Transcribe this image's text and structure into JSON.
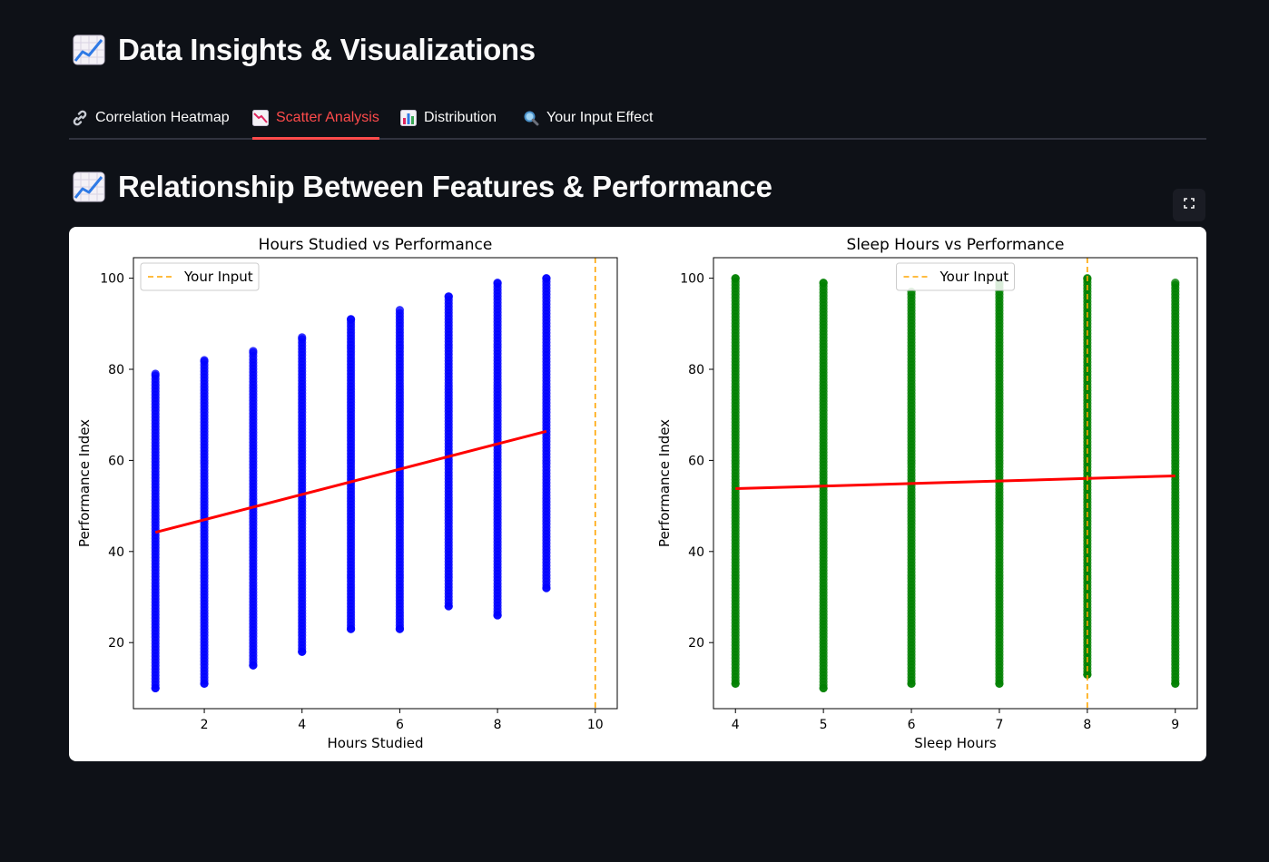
{
  "header": {
    "title": "Data Insights & Visualizations",
    "icon": "chart-increasing-icon"
  },
  "tabs": [
    {
      "label": "Correlation Heatmap",
      "icon": "link-icon",
      "active": false
    },
    {
      "label": "Scatter Analysis",
      "icon": "chart-decreasing-icon",
      "active": true
    },
    {
      "label": "Distribution",
      "icon": "bar-chart-icon",
      "active": false
    },
    {
      "label": "Your Input Effect",
      "icon": "magnifier-icon",
      "active": false
    }
  ],
  "section": {
    "title": "Relationship Between Features & Performance",
    "icon": "chart-increasing-icon"
  },
  "fullscreen": {
    "icon": "expand-icon"
  },
  "colors": {
    "background": "#0e1117",
    "accent": "#ff4b4b",
    "scatter1": "#0000ff",
    "scatter2": "#008000",
    "fit_line": "#ff0000",
    "input_line": "#ffa500"
  },
  "chart_data": [
    {
      "type": "scatter",
      "title": "Hours Studied vs Performance",
      "xlabel": "Hours Studied",
      "ylabel": "Performance Index",
      "xlim": [
        0.55,
        10.45
      ],
      "ylim": [
        5.5,
        104.5
      ],
      "xticks": [
        2,
        4,
        6,
        8,
        10
      ],
      "yticks": [
        20,
        40,
        60,
        80,
        100
      ],
      "legend": {
        "label": "Your Input",
        "placement": "upper left"
      },
      "input_value": 10,
      "point_color": "#0000ff",
      "columns": [
        {
          "x": 1,
          "ymin": 10,
          "ymax": 79
        },
        {
          "x": 2,
          "ymin": 11,
          "ymax": 82
        },
        {
          "x": 3,
          "ymin": 15,
          "ymax": 84
        },
        {
          "x": 4,
          "ymin": 18,
          "ymax": 87
        },
        {
          "x": 5,
          "ymin": 23,
          "ymax": 91
        },
        {
          "x": 6,
          "ymin": 23,
          "ymax": 93
        },
        {
          "x": 7,
          "ymin": 28,
          "ymax": 96
        },
        {
          "x": 8,
          "ymin": 26,
          "ymax": 99
        },
        {
          "x": 9,
          "ymin": 32,
          "ymax": 100
        }
      ],
      "regression": {
        "x": [
          1,
          9
        ],
        "y": [
          44.2,
          66.4
        ]
      }
    },
    {
      "type": "scatter",
      "title": "Sleep Hours vs Performance",
      "xlabel": "Sleep Hours",
      "ylabel": "Performance Index",
      "xlim": [
        3.75,
        9.25
      ],
      "ylim": [
        5.5,
        104.5
      ],
      "xticks": [
        4,
        5,
        6,
        7,
        8,
        9
      ],
      "yticks": [
        20,
        40,
        60,
        80,
        100
      ],
      "legend": {
        "label": "Your Input",
        "placement": "upper center"
      },
      "input_value": 8,
      "point_color": "#008000",
      "columns": [
        {
          "x": 4,
          "ymin": 11,
          "ymax": 100
        },
        {
          "x": 5,
          "ymin": 10,
          "ymax": 99
        },
        {
          "x": 6,
          "ymin": 11,
          "ymax": 97
        },
        {
          "x": 7,
          "ymin": 11,
          "ymax": 99
        },
        {
          "x": 8,
          "ymin": 13,
          "ymax": 100
        },
        {
          "x": 9,
          "ymin": 11,
          "ymax": 99
        }
      ],
      "regression": {
        "x": [
          4,
          9
        ],
        "y": [
          53.8,
          56.6
        ]
      }
    }
  ]
}
